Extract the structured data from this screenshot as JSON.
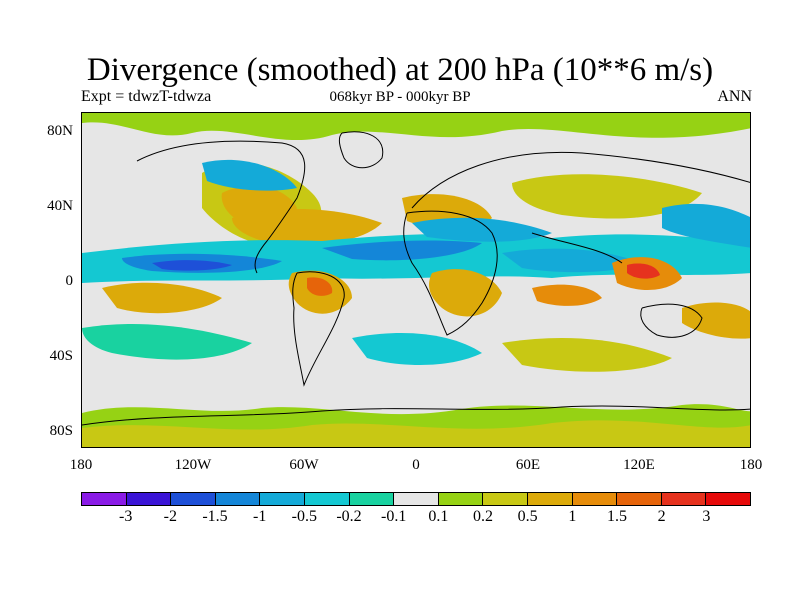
{
  "title": "Divergence (smoothed) at 200 hPa (10**6 m/s)",
  "subtitle_left": "Expt = tdwzT-tdwza",
  "subtitle_center": "068kyr BP - 000kyr BP",
  "subtitle_right": "ANN",
  "map": {
    "projection": "cylindrical equidistant",
    "lat_range": [
      -90,
      90
    ],
    "lon_range": [
      -180,
      180
    ],
    "lat_labels": [
      "80N",
      "40N",
      "0",
      "40S",
      "80S"
    ],
    "lat_values": [
      80,
      40,
      0,
      -40,
      -80
    ],
    "lon_labels": [
      "180",
      "120W",
      "60W",
      "0",
      "60E",
      "120E",
      "180"
    ],
    "lon_values": [
      -180,
      -120,
      -60,
      0,
      60,
      120,
      180
    ],
    "background_color": "#e6e6e6"
  },
  "colorbar": {
    "colors": [
      "#8a1be6",
      "#3a14d6",
      "#1e50d8",
      "#1486d8",
      "#14aad8",
      "#14c8d2",
      "#19d2a0",
      "#e6e6e6",
      "#96d214",
      "#c8c814",
      "#dcaa0a",
      "#e68c0a",
      "#e6640a",
      "#e6321e",
      "#e60a0a"
    ],
    "labels": [
      "-3",
      "-2",
      "-1.5",
      "-1",
      "-0.5",
      "-0.2",
      "-0.1",
      "0.1",
      "0.2",
      "0.5",
      "1",
      "1.5",
      "2",
      "3"
    ]
  }
}
